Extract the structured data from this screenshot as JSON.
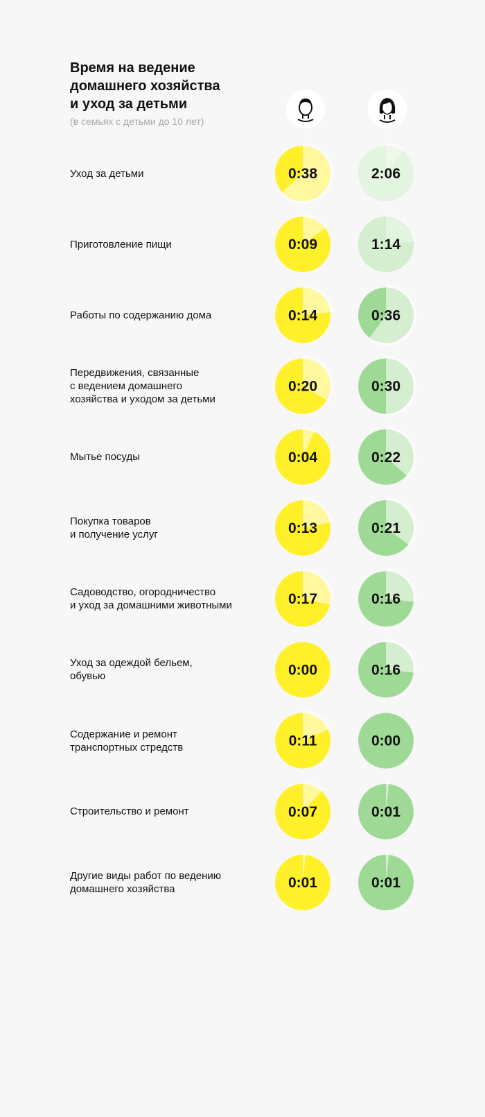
{
  "header": {
    "title_lines": [
      "Время на ведение",
      "домашнего хозяйства",
      "и уход за детьми"
    ],
    "subtitle": "(в семьях с детьми до 10 лет)"
  },
  "avatars": [
    {
      "icon": "man-avatar-icon"
    },
    {
      "icon": "woman-avatar-icon"
    }
  ],
  "colors": {
    "men": "#fff02a",
    "women": "#9fd996",
    "wedge": "#ffffff",
    "background": "#f7f7f7"
  },
  "chart_data": {
    "type": "pie",
    "max_minutes_per_circle": 60,
    "categories": [
      [
        "Уход за детьми"
      ],
      [
        "Приготовление пищи"
      ],
      [
        "Работы по содержанию дома"
      ],
      [
        "Передвижения, связанные",
        "с ведением домашнего",
        "хозяйства и уходом за детьми"
      ],
      [
        "Мытье посуды"
      ],
      [
        "Покупка товаров",
        "и получение услуг"
      ],
      [
        "Садоводство, огородничество",
        "и уход за домашними животными"
      ],
      [
        "Уход за одеждой бельем,",
        "обувью"
      ],
      [
        "Содержание и ремонт",
        "транспортных стредств"
      ],
      [
        "Строительство и ремонт"
      ],
      [
        "Другие виды работ по ведению",
        "домашнего хозяйства"
      ]
    ],
    "series": [
      {
        "key": "men",
        "labels": [
          "0:38",
          "0:09",
          "0:14",
          "0:20",
          "0:04",
          "0:13",
          "0:17",
          "0:00",
          "0:11",
          "0:07",
          "0:01"
        ],
        "minutes": [
          38,
          9,
          14,
          20,
          4,
          13,
          17,
          0,
          11,
          7,
          1
        ]
      },
      {
        "key": "women",
        "labels": [
          "2:06",
          "1:14",
          "0:36",
          "0:30",
          "0:22",
          "0:21",
          "0:16",
          "0:16",
          "0:00",
          "0:01",
          "0:01"
        ],
        "minutes": [
          126,
          74,
          36,
          30,
          22,
          21,
          16,
          16,
          0,
          1,
          1
        ]
      }
    ]
  }
}
